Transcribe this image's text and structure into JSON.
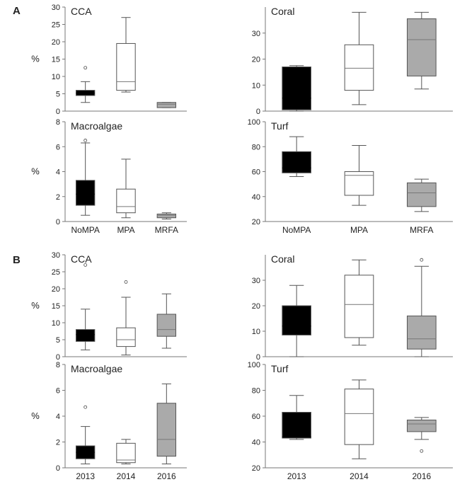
{
  "panel_labels": [
    "A",
    "B"
  ],
  "colors": {
    "NoMPA": "#000000",
    "MPA": "#ffffff",
    "MRFA": "#aaaaaa",
    "2013": "#000000",
    "2014": "#ffffff",
    "2016": "#aaaaaa"
  },
  "chart_data": [
    {
      "type": "box",
      "title": "CCA",
      "ylabel": "%",
      "ylim": [
        0,
        30
      ],
      "yticks": [
        0,
        5,
        10,
        15,
        20,
        25,
        30
      ],
      "categories": [
        "NoMPA",
        "MPA",
        "MRFA"
      ],
      "show_xlabels": false,
      "boxes": [
        {
          "category": "NoMPA",
          "min": 2.5,
          "q1": 4.5,
          "median": 5.2,
          "q3": 6,
          "max": 8.5,
          "outliers": [
            12.5
          ]
        },
        {
          "category": "MPA",
          "min": 5.5,
          "q1": 6,
          "median": 8.5,
          "q3": 19.5,
          "max": 27,
          "outliers": []
        },
        {
          "category": "MRFA",
          "min": 1,
          "q1": 1,
          "median": 2,
          "q3": 2.5,
          "max": 2.5,
          "outliers": []
        }
      ]
    },
    {
      "type": "box",
      "title": "Coral",
      "ylabel": "",
      "ylim": [
        0,
        40
      ],
      "yticks": [
        0,
        10,
        20,
        30
      ],
      "categories": [
        "NoMPA",
        "MPA",
        "MRFA"
      ],
      "show_xlabels": false,
      "boxes": [
        {
          "category": "NoMPA",
          "min": 0,
          "q1": 0.5,
          "median": 5,
          "q3": 17,
          "max": 17.5,
          "outliers": []
        },
        {
          "category": "MPA",
          "min": 2.5,
          "q1": 8,
          "median": 16.5,
          "q3": 25.5,
          "max": 38,
          "outliers": []
        },
        {
          "category": "MRFA",
          "min": 8.5,
          "q1": 13.5,
          "median": 27.5,
          "q3": 35.5,
          "max": 38,
          "outliers": []
        }
      ]
    },
    {
      "type": "box",
      "title": "Macroalgae",
      "ylabel": "%",
      "ylim": [
        0,
        8
      ],
      "yticks": [
        0,
        2,
        4,
        6,
        8
      ],
      "categories": [
        "NoMPA",
        "MPA",
        "MRFA"
      ],
      "show_xlabels": true,
      "boxes": [
        {
          "category": "NoMPA",
          "min": 0.5,
          "q1": 1.3,
          "median": 2.2,
          "q3": 3.3,
          "max": 6.3,
          "outliers": [
            6.5
          ]
        },
        {
          "category": "MPA",
          "min": 0.3,
          "q1": 0.7,
          "median": 1.2,
          "q3": 2.6,
          "max": 5,
          "outliers": []
        },
        {
          "category": "MRFA",
          "min": 0.2,
          "q1": 0.3,
          "median": 0.5,
          "q3": 0.6,
          "max": 0.7,
          "outliers": []
        }
      ]
    },
    {
      "type": "box",
      "title": "Turf",
      "ylabel": "",
      "ylim": [
        20,
        100
      ],
      "yticks": [
        20,
        40,
        60,
        80,
        100
      ],
      "categories": [
        "NoMPA",
        "MPA",
        "MRFA"
      ],
      "show_xlabels": true,
      "boxes": [
        {
          "category": "NoMPA",
          "min": 56,
          "q1": 59,
          "median": 63,
          "q3": 76,
          "max": 88,
          "outliers": []
        },
        {
          "category": "MPA",
          "min": 33,
          "q1": 41,
          "median": 57,
          "q3": 60,
          "max": 81,
          "outliers": []
        },
        {
          "category": "MRFA",
          "min": 28,
          "q1": 32,
          "median": 43,
          "q3": 51,
          "max": 54,
          "outliers": []
        }
      ]
    },
    {
      "type": "box",
      "title": "CCA",
      "ylabel": "%",
      "ylim": [
        0,
        30
      ],
      "yticks": [
        0,
        5,
        10,
        15,
        20,
        25,
        30
      ],
      "categories": [
        "2013",
        "2014",
        "2016"
      ],
      "show_xlabels": false,
      "boxes": [
        {
          "category": "2013",
          "min": 2,
          "q1": 4.5,
          "median": 6.5,
          "q3": 8,
          "max": 14,
          "outliers": [
            27
          ]
        },
        {
          "category": "2014",
          "min": 0.5,
          "q1": 3,
          "median": 5,
          "q3": 8.5,
          "max": 17.5,
          "outliers": [
            22
          ]
        },
        {
          "category": "2016",
          "min": 2.5,
          "q1": 6,
          "median": 8,
          "q3": 12.5,
          "max": 18.5,
          "outliers": []
        }
      ]
    },
    {
      "type": "box",
      "title": "Coral",
      "ylabel": "",
      "ylim": [
        0,
        40
      ],
      "yticks": [
        0,
        10,
        20,
        30
      ],
      "categories": [
        "2013",
        "2014",
        "2016"
      ],
      "show_xlabels": false,
      "boxes": [
        {
          "category": "2013",
          "min": 0,
          "q1": 8.5,
          "median": 12,
          "q3": 20,
          "max": 28,
          "outliers": []
        },
        {
          "category": "2014",
          "min": 4.5,
          "q1": 7.5,
          "median": 20.5,
          "q3": 32,
          "max": 38,
          "outliers": []
        },
        {
          "category": "2016",
          "min": 0,
          "q1": 3,
          "median": 7,
          "q3": 16,
          "max": 35.5,
          "outliers": [
            38
          ]
        }
      ]
    },
    {
      "type": "box",
      "title": "Macroalgae",
      "ylabel": "%",
      "ylim": [
        0,
        8
      ],
      "yticks": [
        0,
        2,
        4,
        6,
        8
      ],
      "categories": [
        "2013",
        "2014",
        "2016"
      ],
      "show_xlabels": true,
      "boxes": [
        {
          "category": "2013",
          "min": 0.3,
          "q1": 0.7,
          "median": 1.2,
          "q3": 1.7,
          "max": 3.2,
          "outliers": [
            4.7
          ]
        },
        {
          "category": "2014",
          "min": 0.3,
          "q1": 0.4,
          "median": 0.6,
          "q3": 1.9,
          "max": 2.2,
          "outliers": []
        },
        {
          "category": "2016",
          "min": 0.3,
          "q1": 0.9,
          "median": 2.2,
          "q3": 5,
          "max": 6.5,
          "outliers": []
        }
      ]
    },
    {
      "type": "box",
      "title": "Turf",
      "ylabel": "",
      "ylim": [
        20,
        100
      ],
      "yticks": [
        20,
        40,
        60,
        80,
        100
      ],
      "categories": [
        "2013",
        "2014",
        "2016"
      ],
      "show_xlabels": true,
      "boxes": [
        {
          "category": "2013",
          "min": 42,
          "q1": 43,
          "median": 44,
          "q3": 63,
          "max": 76,
          "outliers": []
        },
        {
          "category": "2014",
          "min": 27,
          "q1": 38,
          "median": 62,
          "q3": 81,
          "max": 88,
          "outliers": []
        },
        {
          "category": "2016",
          "min": 42,
          "q1": 48,
          "median": 54,
          "q3": 57,
          "max": 59,
          "outliers": [
            33
          ]
        }
      ]
    }
  ]
}
